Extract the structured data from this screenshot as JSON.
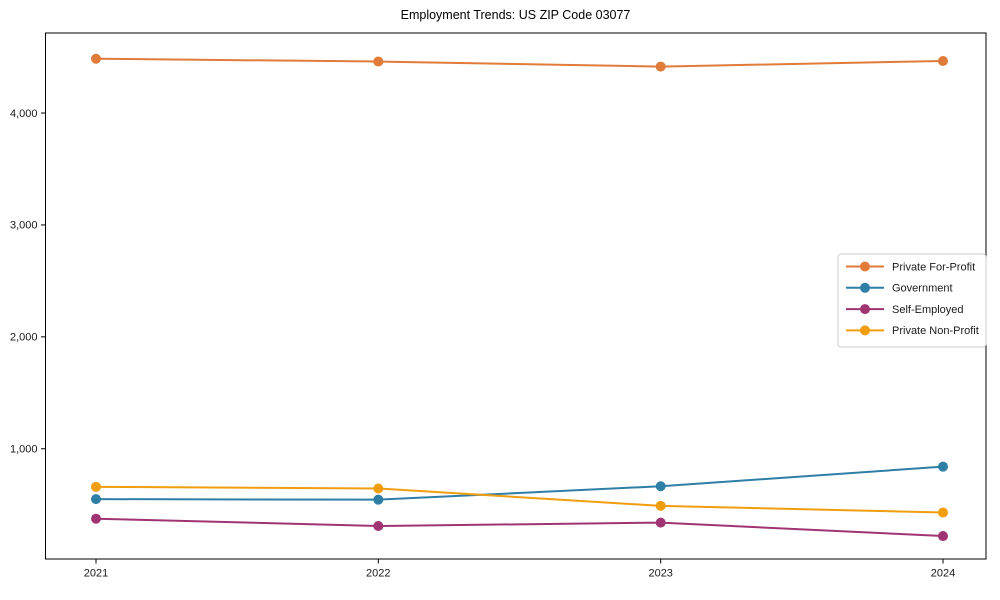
{
  "chart_data": {
    "type": "line",
    "title": "Employment Trends: US ZIP Code 03077",
    "x_tick_labels": [
      "2021",
      "2022",
      "2023",
      "2024"
    ],
    "y_ticks": [
      1000,
      2000,
      3000,
      4000
    ],
    "y_tick_labels": [
      "1,000",
      "2,000",
      "3,000",
      "4,000"
    ],
    "ylim": [
      15,
      4715
    ],
    "grid": false,
    "legend_position": "center right",
    "series": [
      {
        "name": "Private For-Profit",
        "color": "#e07b39",
        "values": [
          4485,
          4460,
          4415,
          4465
        ]
      },
      {
        "name": "Government",
        "color": "#2e7ea6",
        "values": [
          550,
          545,
          665,
          840
        ]
      },
      {
        "name": "Self-Employed",
        "color": "#a03473",
        "values": [
          375,
          310,
          340,
          220
        ]
      },
      {
        "name": "Private Non-Profit",
        "color": "#f09d10",
        "values": [
          660,
          645,
          490,
          430
        ]
      }
    ],
    "colors": {
      "spine": "#000000",
      "tick_text": "#1a1a1a",
      "legend_border": "#cccccc",
      "legend_bg": "#ffffff"
    }
  }
}
